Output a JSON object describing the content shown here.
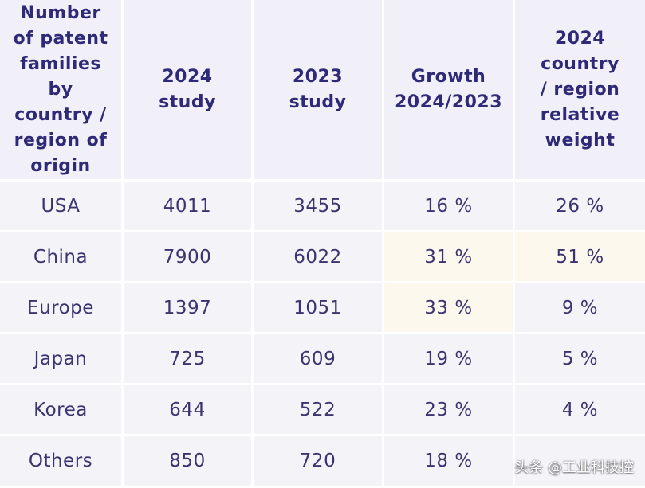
{
  "table": {
    "headers": [
      [
        "Number",
        "of patent",
        "families by",
        "country /",
        "region of",
        "origin"
      ],
      [
        "2024",
        "study"
      ],
      [
        "2023",
        "study"
      ],
      [
        "Growth",
        "2024/2023"
      ],
      [
        "2024",
        "country",
        "/ region",
        "relative",
        "weight"
      ]
    ],
    "rows": [
      {
        "region": "USA",
        "y2024": "4011",
        "y2023": "3455",
        "growth": "16 %",
        "weight": "26 %"
      },
      {
        "region": "China",
        "y2024": "7900",
        "y2023": "6022",
        "growth": "31 %",
        "weight": "51 %"
      },
      {
        "region": "Europe",
        "y2024": "1397",
        "y2023": "1051",
        "growth": "33 %",
        "weight": "9 %"
      },
      {
        "region": "Japan",
        "y2024": "725",
        "y2023": "609",
        "growth": "19 %",
        "weight": "5 %"
      },
      {
        "region": "Korea",
        "y2024": "644",
        "y2023": "522",
        "growth": "23 %",
        "weight": "4 %"
      },
      {
        "region": "Others",
        "y2024": "850",
        "y2023": "720",
        "growth": "18 %",
        "weight": ""
      }
    ]
  },
  "watermark": "头条 @工业科技控",
  "colors": {
    "header_bg": "#f1f0f8",
    "cell_bg": "#f3f3f8",
    "highlight_bg": "#fdf8ee",
    "header_text": "#2e2a78",
    "body_text": "#3c3470"
  }
}
